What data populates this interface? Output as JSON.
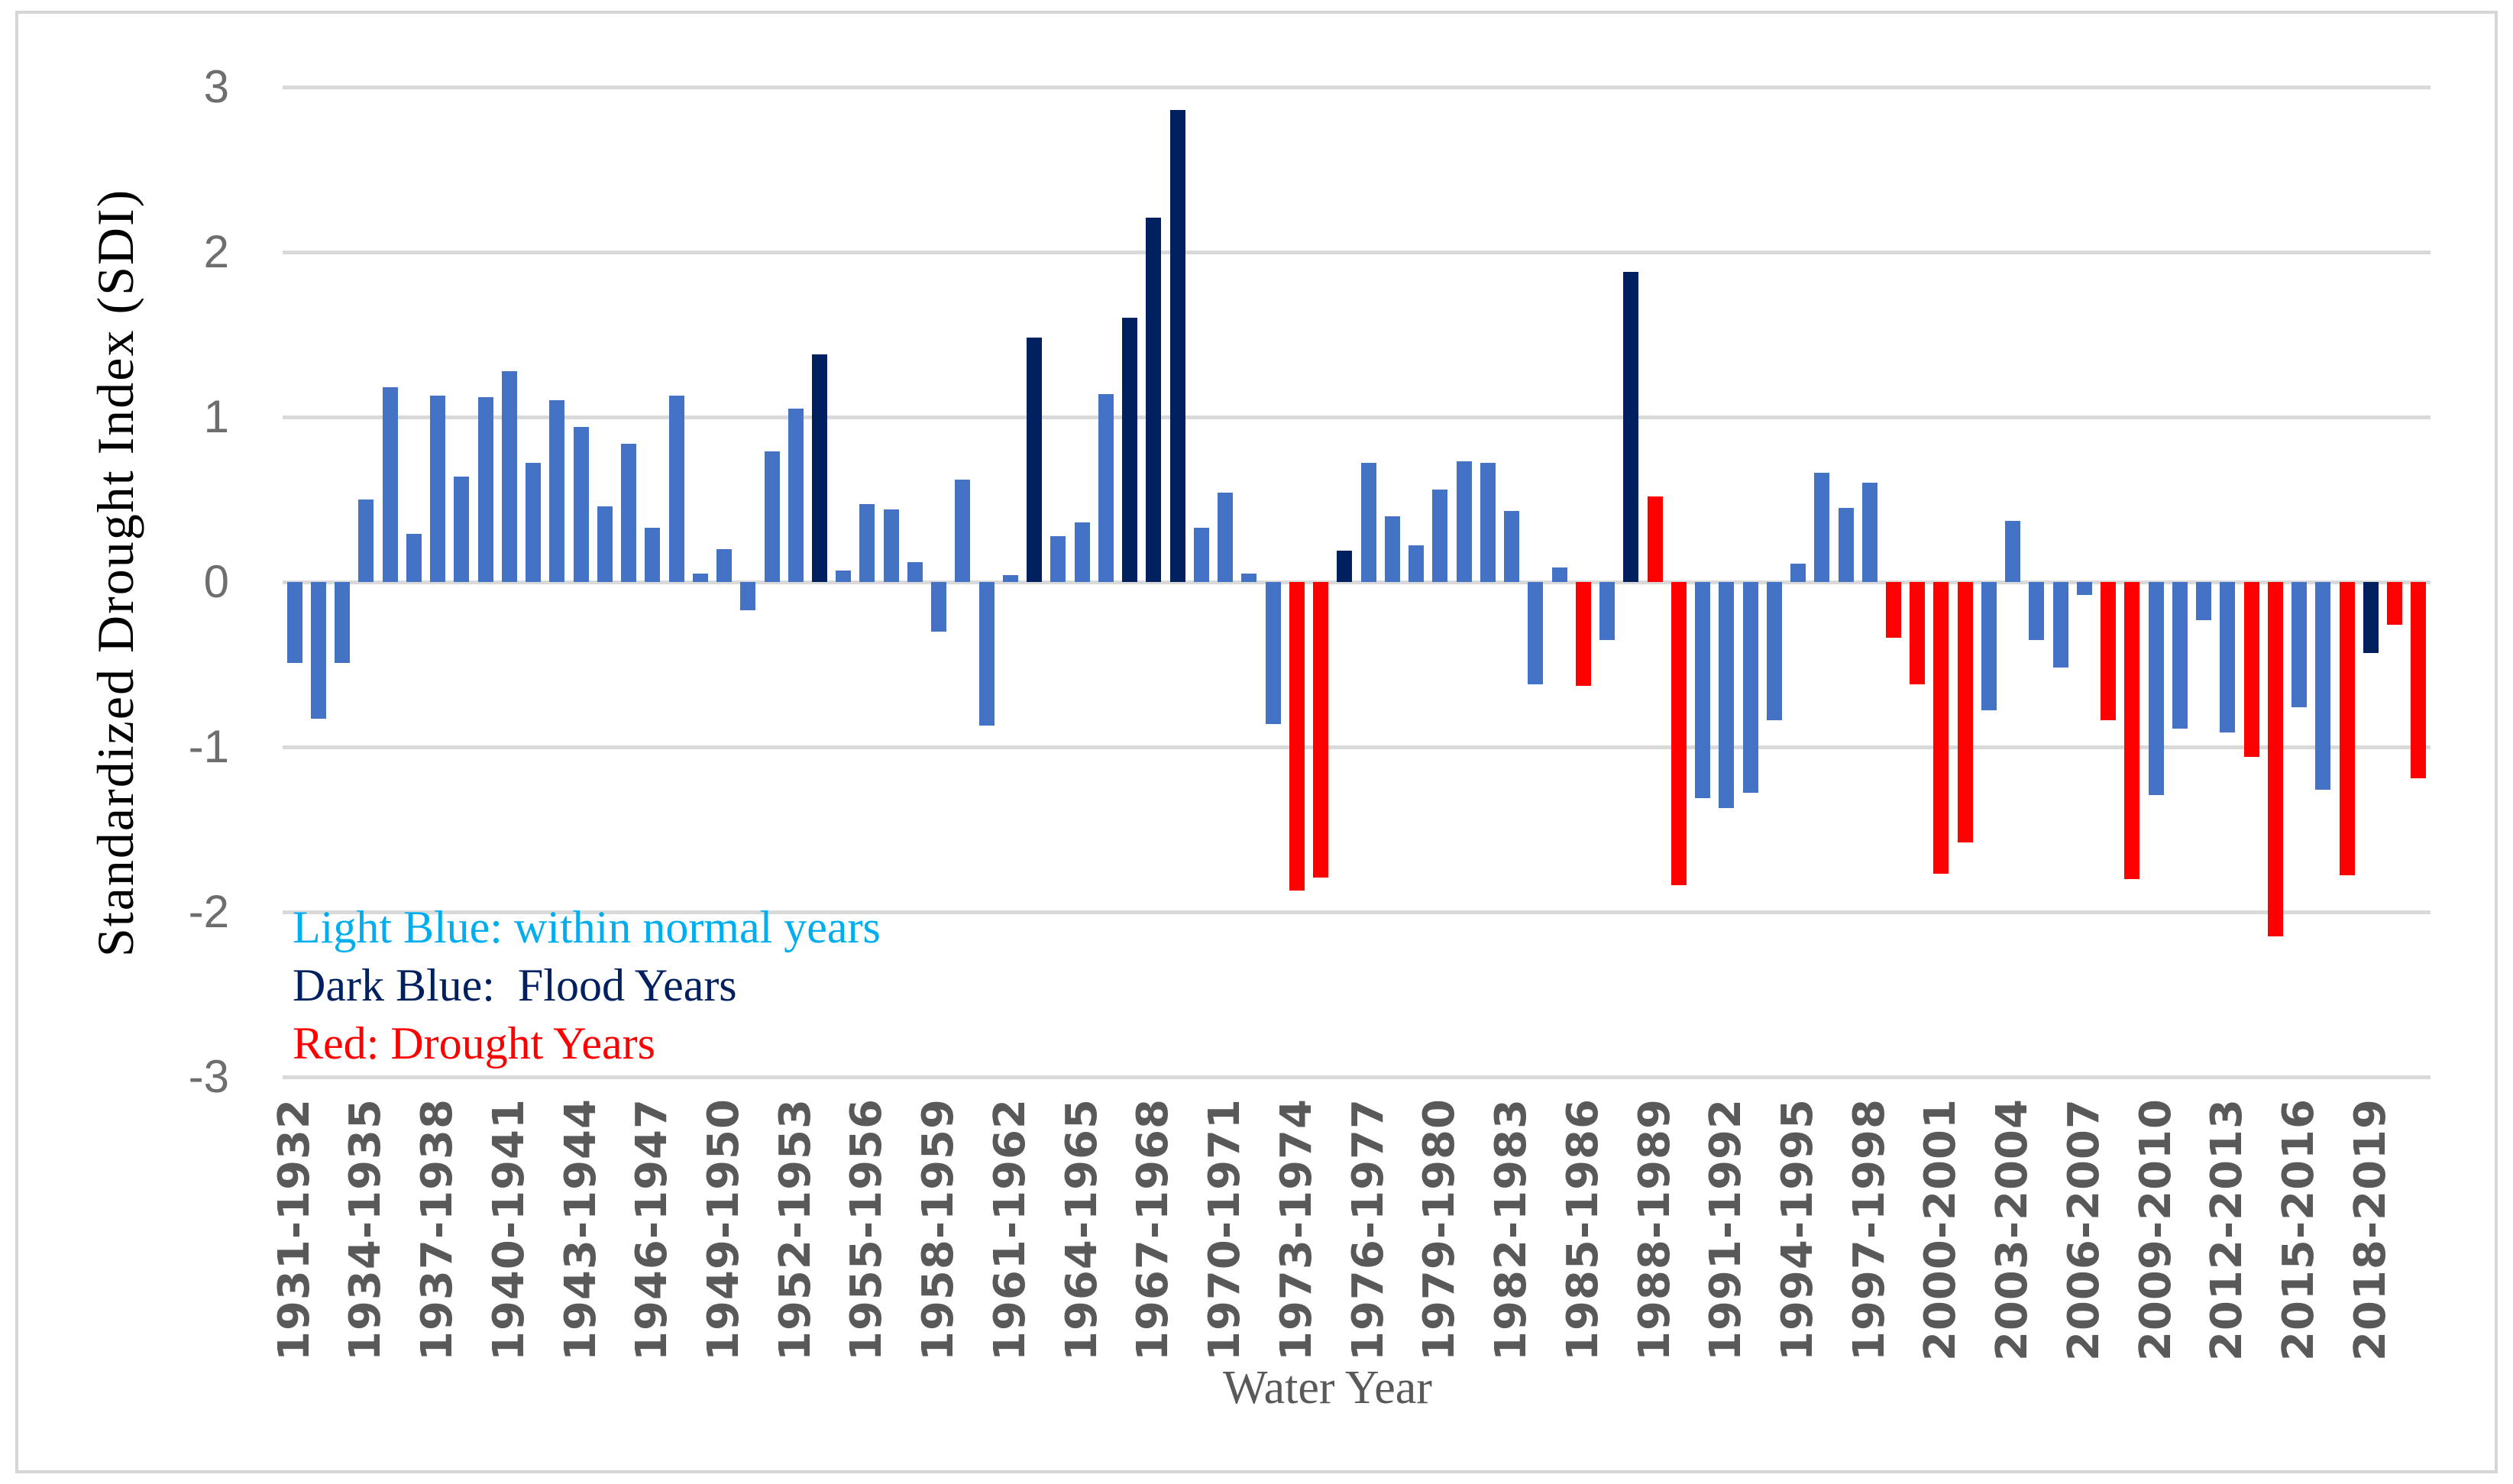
{
  "chart_data": {
    "type": "bar",
    "title": "",
    "xlabel": "Water Year",
    "ylabel": "Standardized Drought Index (SDI)",
    "ylim": [
      -3,
      3
    ],
    "y_ticks": [
      "3",
      "2",
      "1",
      "0",
      "-1",
      "-2",
      "-3"
    ],
    "grid": true,
    "x_tick_every": 3,
    "x_tick_labels": [
      "1931-1932",
      "1934-1935",
      "1937-1938",
      "1940-1941",
      "1943-1944",
      "1946-1947",
      "1949-1950",
      "1952-1953",
      "1955-1956",
      "1958-1959",
      "1961-1962",
      "1964-1965",
      "1967-1968",
      "1970-1971",
      "1973-1974",
      "1976-1977",
      "1979-1980",
      "1982-1983",
      "1985-1986",
      "1988-1989",
      "1991-1992",
      "1994-1995",
      "1997-1998",
      "2000-2001",
      "2003-2004",
      "2006-2007",
      "2009-2010",
      "2012-2013",
      "2015-2016",
      "2018-2019"
    ],
    "points": [
      {
        "year": "1931-1932",
        "value": -0.49,
        "type": "normal"
      },
      {
        "year": "1932-1933",
        "value": -0.83,
        "type": "normal"
      },
      {
        "year": "1933-1934",
        "value": -0.49,
        "type": "normal"
      },
      {
        "year": "1934-1935",
        "value": 0.5,
        "type": "normal"
      },
      {
        "year": "1935-1936",
        "value": 1.18,
        "type": "normal"
      },
      {
        "year": "1936-1937",
        "value": 0.29,
        "type": "normal"
      },
      {
        "year": "1937-1938",
        "value": 1.13,
        "type": "normal"
      },
      {
        "year": "1938-1939",
        "value": 0.64,
        "type": "normal"
      },
      {
        "year": "1939-1940",
        "value": 1.12,
        "type": "normal"
      },
      {
        "year": "1940-1941",
        "value": 1.28,
        "type": "normal"
      },
      {
        "year": "1941-1942",
        "value": 0.72,
        "type": "normal"
      },
      {
        "year": "1942-1943",
        "value": 1.1,
        "type": "normal"
      },
      {
        "year": "1943-1944",
        "value": 0.94,
        "type": "normal"
      },
      {
        "year": "1944-1945",
        "value": 0.46,
        "type": "normal"
      },
      {
        "year": "1945-1946",
        "value": 0.84,
        "type": "normal"
      },
      {
        "year": "1946-1947",
        "value": 0.33,
        "type": "normal"
      },
      {
        "year": "1947-1948",
        "value": 1.13,
        "type": "normal"
      },
      {
        "year": "1948-1949",
        "value": 0.05,
        "type": "normal"
      },
      {
        "year": "1949-1950",
        "value": 0.2,
        "type": "normal"
      },
      {
        "year": "1950-1951",
        "value": -0.17,
        "type": "normal"
      },
      {
        "year": "1951-1952",
        "value": 0.79,
        "type": "normal"
      },
      {
        "year": "1952-1953",
        "value": 1.05,
        "type": "normal"
      },
      {
        "year": "1953-1954",
        "value": 1.38,
        "type": "flood"
      },
      {
        "year": "1954-1955",
        "value": 0.07,
        "type": "normal"
      },
      {
        "year": "1955-1956",
        "value": 0.47,
        "type": "normal"
      },
      {
        "year": "1956-1957",
        "value": 0.44,
        "type": "normal"
      },
      {
        "year": "1957-1958",
        "value": 0.12,
        "type": "normal"
      },
      {
        "year": "1958-1959",
        "value": -0.3,
        "type": "normal"
      },
      {
        "year": "1959-1960",
        "value": 0.62,
        "type": "normal"
      },
      {
        "year": "1960-1961",
        "value": -0.87,
        "type": "normal"
      },
      {
        "year": "1961-1962",
        "value": 0.04,
        "type": "normal"
      },
      {
        "year": "1962-1963",
        "value": 1.48,
        "type": "flood"
      },
      {
        "year": "1963-1964",
        "value": 0.28,
        "type": "normal"
      },
      {
        "year": "1964-1965",
        "value": 0.36,
        "type": "normal"
      },
      {
        "year": "1965-1966",
        "value": 1.14,
        "type": "normal"
      },
      {
        "year": "1966-1967",
        "value": 1.6,
        "type": "flood"
      },
      {
        "year": "1967-1968",
        "value": 2.21,
        "type": "flood"
      },
      {
        "year": "1968-1969",
        "value": 2.86,
        "type": "flood"
      },
      {
        "year": "1969-1970",
        "value": 0.33,
        "type": "normal"
      },
      {
        "year": "1970-1971",
        "value": 0.54,
        "type": "normal"
      },
      {
        "year": "1971-1972",
        "value": 0.05,
        "type": "normal"
      },
      {
        "year": "1972-1973",
        "value": -0.86,
        "type": "normal"
      },
      {
        "year": "1973-1974",
        "value": -1.87,
        "type": "drought"
      },
      {
        "year": "1974-1975",
        "value": -1.79,
        "type": "drought"
      },
      {
        "year": "1975-1976",
        "value": 0.19,
        "type": "flood"
      },
      {
        "year": "1976-1977",
        "value": 0.72,
        "type": "normal"
      },
      {
        "year": "1977-1978",
        "value": 0.4,
        "type": "normal"
      },
      {
        "year": "1978-1979",
        "value": 0.22,
        "type": "normal"
      },
      {
        "year": "1979-1980",
        "value": 0.56,
        "type": "normal"
      },
      {
        "year": "1980-1981",
        "value": 0.73,
        "type": "normal"
      },
      {
        "year": "1981-1982",
        "value": 0.72,
        "type": "normal"
      },
      {
        "year": "1982-1983",
        "value": 0.43,
        "type": "normal"
      },
      {
        "year": "1983-1984",
        "value": -0.62,
        "type": "normal"
      },
      {
        "year": "1984-1985",
        "value": 0.09,
        "type": "normal"
      },
      {
        "year": "1985-1986",
        "value": -0.63,
        "type": "drought"
      },
      {
        "year": "1986-1987",
        "value": -0.35,
        "type": "normal"
      },
      {
        "year": "1987-1988",
        "value": 1.88,
        "type": "flood"
      },
      {
        "year": "1988-1989",
        "value": 0.52,
        "type": "drought"
      },
      {
        "year": "1989-1990",
        "value": -1.84,
        "type": "drought"
      },
      {
        "year": "1990-1991",
        "value": -1.31,
        "type": "normal"
      },
      {
        "year": "1991-1992",
        "value": -1.37,
        "type": "normal"
      },
      {
        "year": "1992-1993",
        "value": -1.28,
        "type": "normal"
      },
      {
        "year": "1993-1994",
        "value": -0.84,
        "type": "normal"
      },
      {
        "year": "1994-1995",
        "value": 0.11,
        "type": "normal"
      },
      {
        "year": "1995-1996",
        "value": 0.66,
        "type": "normal"
      },
      {
        "year": "1996-1997",
        "value": 0.45,
        "type": "normal"
      },
      {
        "year": "1997-1998",
        "value": 0.6,
        "type": "normal"
      },
      {
        "year": "1998-1999",
        "value": -0.34,
        "type": "drought"
      },
      {
        "year": "1999-2000",
        "value": -0.62,
        "type": "drought"
      },
      {
        "year": "2000-2001",
        "value": -1.77,
        "type": "drought"
      },
      {
        "year": "2001-2002",
        "value": -1.58,
        "type": "drought"
      },
      {
        "year": "2002-2003",
        "value": -0.78,
        "type": "normal"
      },
      {
        "year": "2003-2004",
        "value": 0.37,
        "type": "normal"
      },
      {
        "year": "2004-2005",
        "value": -0.35,
        "type": "normal"
      },
      {
        "year": "2005-2006",
        "value": -0.52,
        "type": "normal"
      },
      {
        "year": "2006-2007",
        "value": -0.08,
        "type": "normal"
      },
      {
        "year": "2007-2008",
        "value": -0.84,
        "type": "drought"
      },
      {
        "year": "2008-2009",
        "value": -1.8,
        "type": "drought"
      },
      {
        "year": "2009-2010",
        "value": -1.29,
        "type": "normal"
      },
      {
        "year": "2010-2011",
        "value": -0.89,
        "type": "normal"
      },
      {
        "year": "2011-2012",
        "value": -0.23,
        "type": "normal"
      },
      {
        "year": "2012-2013",
        "value": -0.91,
        "type": "normal"
      },
      {
        "year": "2013-2014",
        "value": -1.06,
        "type": "drought"
      },
      {
        "year": "2014-2015",
        "value": -2.15,
        "type": "drought"
      },
      {
        "year": "2015-2016",
        "value": -0.76,
        "type": "normal"
      },
      {
        "year": "2016-2017",
        "value": -1.26,
        "type": "normal"
      },
      {
        "year": "2017-2018",
        "value": -1.78,
        "type": "drought"
      },
      {
        "year": "2018-2019",
        "value": -0.43,
        "type": "flood"
      },
      {
        "year": "2019-2020",
        "value": -0.26,
        "type": "drought"
      },
      {
        "year": "2020-2021",
        "value": -1.19,
        "type": "drought"
      }
    ]
  },
  "legend": {
    "items": [
      {
        "label": "Light Blue: within normal years",
        "color": "#00AEEF"
      },
      {
        "label": "Dark Blue:  Flood Years",
        "color": "#002060"
      },
      {
        "label": "Red: Drought Years",
        "color": "#FF0000"
      }
    ]
  },
  "colors": {
    "bar_normal": "#4472C4",
    "bar_flood": "#002060",
    "bar_drought": "#FF0000",
    "gridline": "#D9D9D9",
    "frame_border": "#D6D6D6",
    "y_tick_text": "#6E6E6E",
    "x_tick_text": "#595959",
    "x_title_text": "#595959",
    "y_title_text": "#000000"
  }
}
